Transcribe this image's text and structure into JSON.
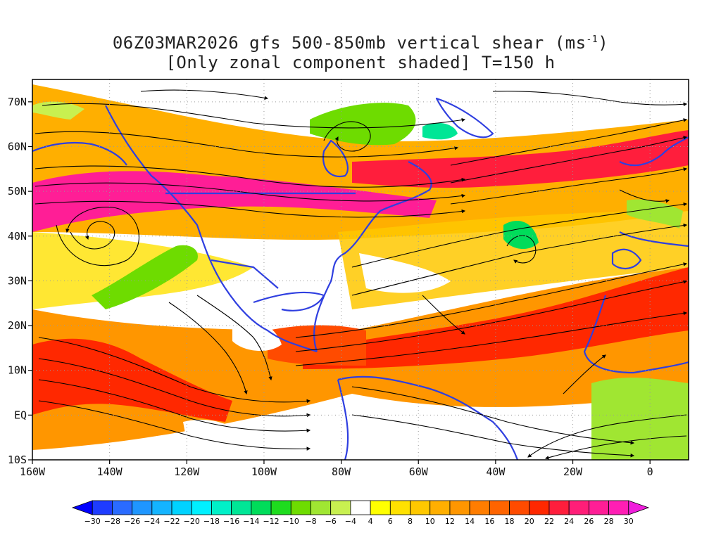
{
  "title": {
    "line1_main": "06Z03MAR2026 gfs 500-850mb vertical shear (ms",
    "line1_sup": "-1",
    "line1_end": ")",
    "line2": "[Only zonal component shaded] T=150 h"
  },
  "map": {
    "lon_range": [
      -160,
      10
    ],
    "lat_range": [
      -10,
      75
    ],
    "lat_ticks": [
      {
        "value": 70,
        "label": "70N"
      },
      {
        "value": 60,
        "label": "60N"
      },
      {
        "value": 50,
        "label": "50N"
      },
      {
        "value": 40,
        "label": "40N"
      },
      {
        "value": 30,
        "label": "30N"
      },
      {
        "value": 20,
        "label": "20N"
      },
      {
        "value": 10,
        "label": "10N"
      },
      {
        "value": 0,
        "label": "EQ"
      },
      {
        "value": -10,
        "label": "10S"
      }
    ],
    "lon_ticks": [
      {
        "value": -160,
        "label": "160W"
      },
      {
        "value": -140,
        "label": "140W"
      },
      {
        "value": -120,
        "label": "120W"
      },
      {
        "value": -100,
        "label": "100W"
      },
      {
        "value": -80,
        "label": "80W"
      },
      {
        "value": -60,
        "label": "60W"
      },
      {
        "value": -40,
        "label": "40W"
      },
      {
        "value": -20,
        "label": "20W"
      },
      {
        "value": 0,
        "label": "0"
      }
    ],
    "coastline_color": "#2f3fe0",
    "streamline_color": "#000000"
  },
  "colorbar": {
    "labels": [
      "-30",
      "-28",
      "-26",
      "-24",
      "-22",
      "-20",
      "-18",
      "-16",
      "-14",
      "-12",
      "-10",
      "-8",
      "-6",
      "-4",
      "4",
      "6",
      "8",
      "10",
      "12",
      "14",
      "16",
      "18",
      "20",
      "22",
      "24",
      "26",
      "28",
      "30"
    ],
    "colors": [
      "#0000ff",
      "#1e3cff",
      "#2a6bff",
      "#1f96ff",
      "#14b4ff",
      "#00d2ff",
      "#00f0ff",
      "#00f0c8",
      "#00e696",
      "#00dc5a",
      "#1edc1e",
      "#6edc00",
      "#a0e632",
      "#c8f050",
      "#ffffff",
      "#ffff00",
      "#ffe100",
      "#ffc800",
      "#ffaf00",
      "#ff9600",
      "#ff7d00",
      "#ff6400",
      "#ff4b00",
      "#ff2800",
      "#ff1e3c",
      "#ff1e78",
      "#ff1e96",
      "#ff1eb4",
      "#f01edc"
    ]
  }
}
